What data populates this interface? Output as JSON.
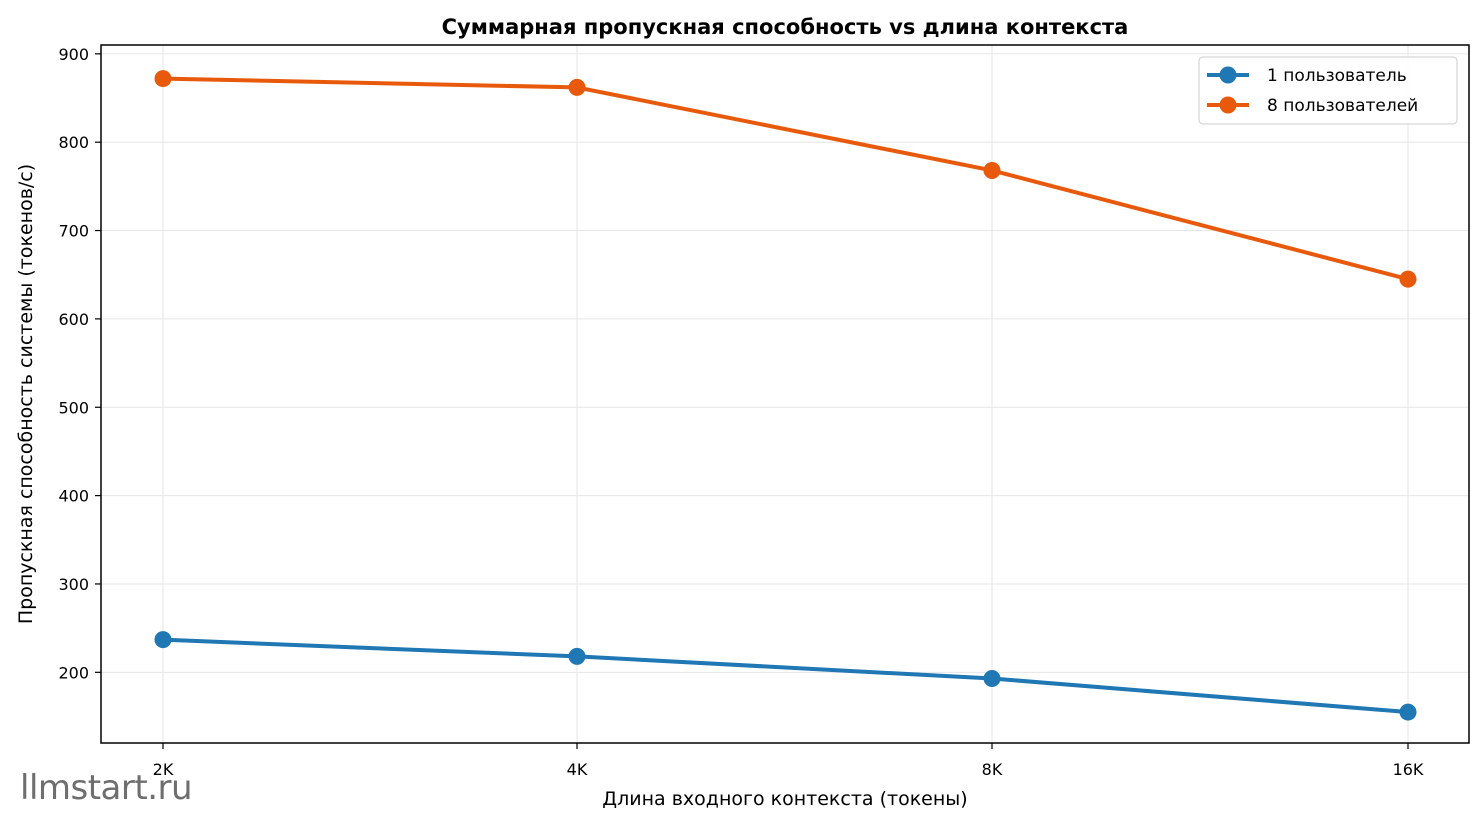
{
  "watermark": "llmstart.ru",
  "chart_data": {
    "type": "line",
    "title": "Суммарная пропускная способность vs длина контекста",
    "xlabel": "Длина входного контекста (токены)",
    "ylabel": "Пропускная способность системы (токенов/с)",
    "categories": [
      "2K",
      "4K",
      "8K",
      "16K"
    ],
    "yticks": [
      200,
      300,
      400,
      500,
      600,
      700,
      800,
      900
    ],
    "ylim": [
      120,
      910
    ],
    "grid": true,
    "legend_position": "top-right",
    "series": [
      {
        "name": "1 пользователь",
        "color": "#1f77b4",
        "values": [
          237,
          218,
          193,
          155
        ]
      },
      {
        "name": "8 пользователей",
        "color": "#e8590c",
        "values": [
          872,
          862,
          768,
          645
        ]
      }
    ]
  }
}
